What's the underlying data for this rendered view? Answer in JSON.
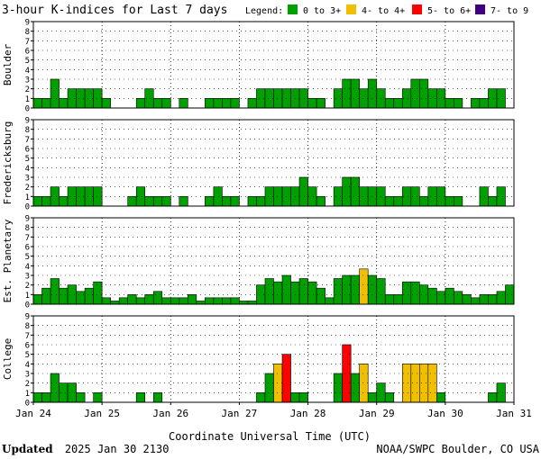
{
  "title": "3-hour K-indices for Last 7 days",
  "legend": {
    "label": "Legend:",
    "items": [
      {
        "label": "0 to 3+",
        "color": "#00a000"
      },
      {
        "label": "4- to 4+",
        "color": "#f0c000"
      },
      {
        "label": "5- to 6+",
        "color": "#ff0000"
      },
      {
        "label": "7- to 9",
        "color": "#400080"
      }
    ]
  },
  "panels": [
    {
      "label": "Boulder"
    },
    {
      "label": "Fredericksburg"
    },
    {
      "label": "Est. Planetary"
    },
    {
      "label": "College"
    }
  ],
  "xaxis": {
    "label": "Coordinate Universal Time (UTC)",
    "ticks": [
      "Jan 24",
      "Jan 25",
      "Jan 26",
      "Jan 27",
      "Jan 28",
      "Jan 29",
      "Jan 30",
      "Jan 31"
    ]
  },
  "footer": {
    "updated_label": "Updated",
    "updated_value": "2025 Jan 30 2130",
    "credit": "NOAA/SWPC Boulder, CO USA"
  },
  "chart_data": {
    "type": "bar",
    "x_interval": "3 hours",
    "start": "Jan 24 00 UTC",
    "ylim": [
      0,
      9
    ],
    "yticks": [
      0,
      1,
      2,
      3,
      4,
      5,
      6,
      7,
      8,
      9
    ],
    "grid": true,
    "colors": {
      "0-3": "#00a000",
      "4": "#f0c000",
      "5-6": "#ff0000",
      "7-9": "#400080"
    },
    "series": [
      {
        "name": "Boulder",
        "values": [
          1,
          1,
          3,
          1,
          2,
          2,
          2,
          2,
          1,
          0,
          0,
          0,
          1,
          2,
          1,
          1,
          0,
          1,
          0,
          0,
          1,
          1,
          1,
          1,
          0,
          1,
          2,
          2,
          2,
          2,
          2,
          2,
          1,
          1,
          0,
          2,
          3,
          3,
          2,
          3,
          2,
          1,
          1,
          2,
          3,
          3,
          2,
          2,
          1,
          1,
          0,
          1,
          1,
          2,
          2,
          0
        ]
      },
      {
        "name": "Fredericksburg",
        "values": [
          1,
          1,
          2,
          1,
          2,
          2,
          2,
          2,
          0,
          0,
          0,
          1,
          2,
          1,
          1,
          1,
          0,
          1,
          0,
          0,
          1,
          2,
          1,
          1,
          0,
          1,
          1,
          2,
          2,
          2,
          2,
          3,
          2,
          1,
          0,
          2,
          3,
          3,
          2,
          2,
          2,
          1,
          1,
          2,
          2,
          1,
          2,
          2,
          1,
          1,
          0,
          0,
          2,
          1,
          2,
          0
        ]
      },
      {
        "name": "Est. Planetary",
        "values": [
          1,
          1.67,
          2.67,
          1.67,
          2,
          1.33,
          1.67,
          2.33,
          0.67,
          0.33,
          0.67,
          1,
          0.67,
          1,
          1.33,
          0.67,
          0.67,
          0.67,
          1,
          0.33,
          0.67,
          0.67,
          0.67,
          0.67,
          0.33,
          0.33,
          2,
          2.67,
          2.33,
          3,
          2.33,
          2.67,
          2.33,
          1.67,
          0.67,
          2.67,
          3,
          3,
          3.67,
          3,
          2.67,
          1,
          1,
          2.33,
          2.33,
          2,
          1.67,
          1.33,
          1.67,
          1.33,
          1,
          0.67,
          1,
          1,
          1.33,
          2
        ]
      },
      {
        "name": "College",
        "values": [
          1,
          1,
          3,
          2,
          2,
          1,
          0,
          1,
          0,
          0,
          0,
          0,
          1,
          0,
          1,
          0,
          0,
          0,
          0,
          0,
          0,
          0,
          0,
          0,
          0,
          0,
          1,
          3,
          4,
          5,
          1,
          1,
          0,
          0,
          0,
          3,
          6,
          3,
          4,
          1,
          2,
          1,
          0,
          4,
          4,
          4,
          4,
          1,
          0,
          0,
          0,
          0,
          0,
          1,
          2,
          0
        ]
      }
    ]
  }
}
